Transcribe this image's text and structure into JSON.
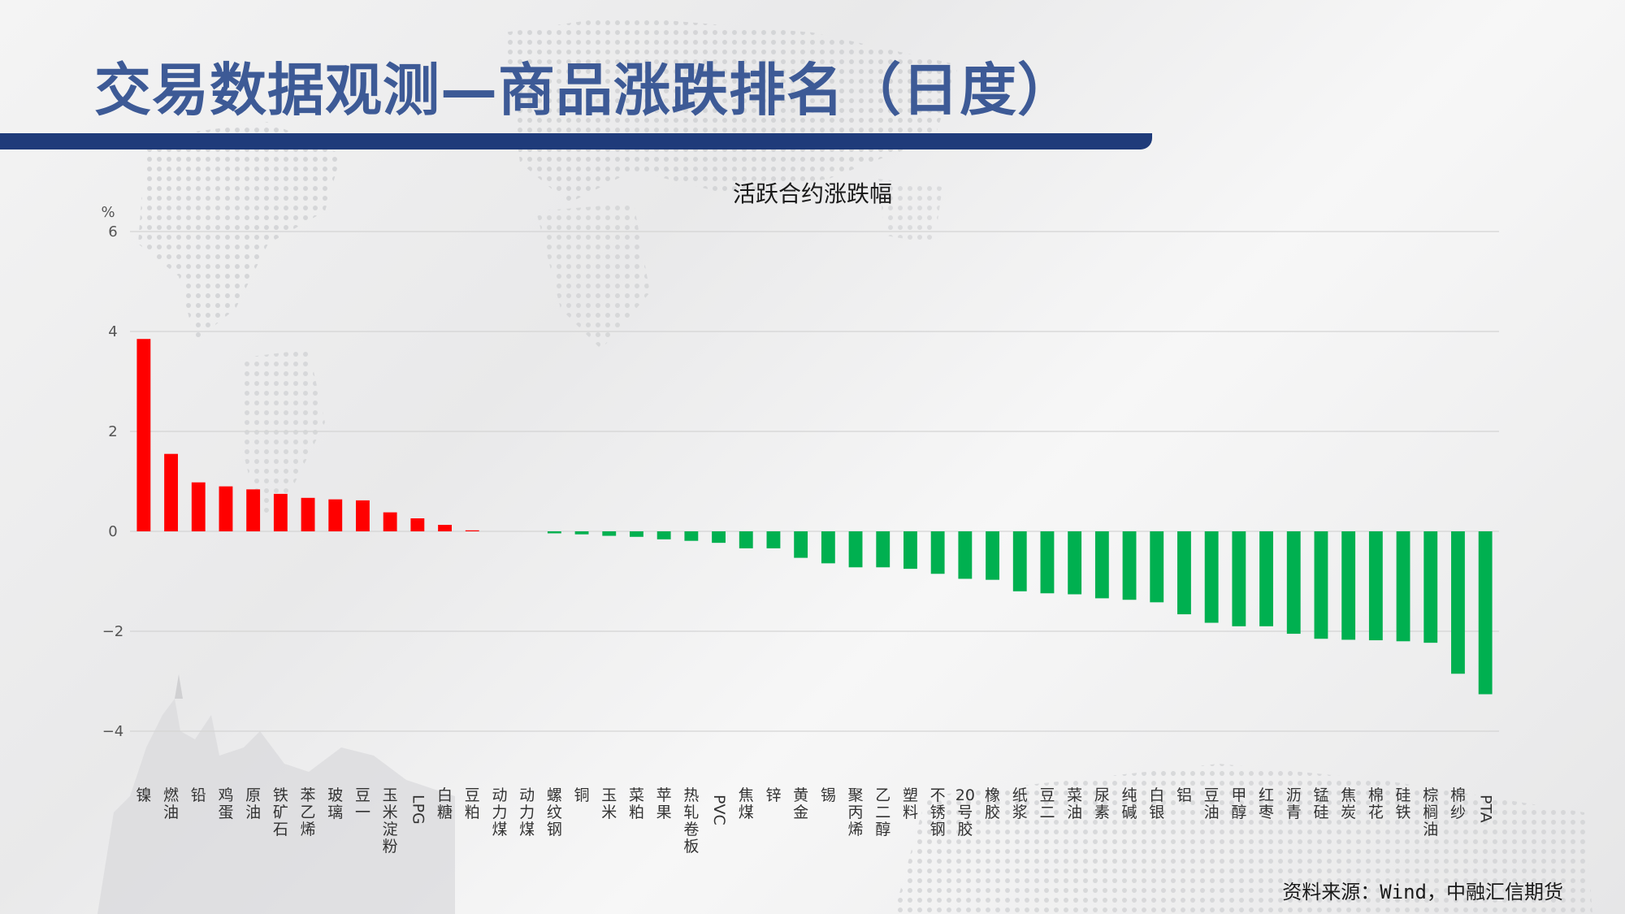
{
  "slide": {
    "title": "交易数据观测—商品涨跌排名（日度）",
    "source": "资料来源：Wind，中融汇信期货"
  },
  "colors": {
    "title": "#3d5a96",
    "bar_band": "#1f3b7a",
    "up": "#ff0000",
    "down": "#00b050"
  },
  "chart_data": {
    "type": "bar",
    "title": "活跃合约涨跌幅",
    "ylabel": "%",
    "ylim": [
      -4,
      6
    ],
    "yticks": [
      -4,
      -2,
      0,
      2,
      4,
      6
    ],
    "grid": true,
    "categories": [
      "镍",
      "燃油",
      "铅",
      "鸡蛋",
      "原油",
      "铁矿石",
      "苯乙烯",
      "玻璃",
      "豆一",
      "玉米淀粉",
      "LPG",
      "白糖",
      "豆粕",
      "动力煤",
      "动力煤",
      "螺纹钢",
      "铜",
      "玉米",
      "菜粕",
      "苹果",
      "热轧卷板",
      "PVC",
      "焦煤",
      "锌",
      "黄金",
      "锡",
      "聚丙烯",
      "乙二醇",
      "塑料",
      "不锈钢",
      "20号胶",
      "橡胶",
      "纸浆",
      "豆二",
      "菜油",
      "尿素",
      "纯碱",
      "白银",
      "铝",
      "豆油",
      "甲醇",
      "红枣",
      "沥青",
      "锰硅",
      "焦炭",
      "棉花",
      "硅铁",
      "棕榈油",
      "棉纱",
      "PTA"
    ],
    "values": [
      3.85,
      1.55,
      0.98,
      0.9,
      0.84,
      0.75,
      0.67,
      0.64,
      0.62,
      0.38,
      0.26,
      0.13,
      0.02,
      0.0,
      0.0,
      -0.04,
      -0.06,
      -0.09,
      -0.11,
      -0.16,
      -0.19,
      -0.23,
      -0.34,
      -0.34,
      -0.53,
      -0.64,
      -0.72,
      -0.72,
      -0.75,
      -0.85,
      -0.95,
      -0.97,
      -1.2,
      -1.24,
      -1.26,
      -1.34,
      -1.37,
      -1.42,
      -1.66,
      -1.83,
      -1.9,
      -1.9,
      -2.05,
      -2.15,
      -2.17,
      -2.18,
      -2.2,
      -2.23,
      -2.85,
      -3.26
    ]
  }
}
